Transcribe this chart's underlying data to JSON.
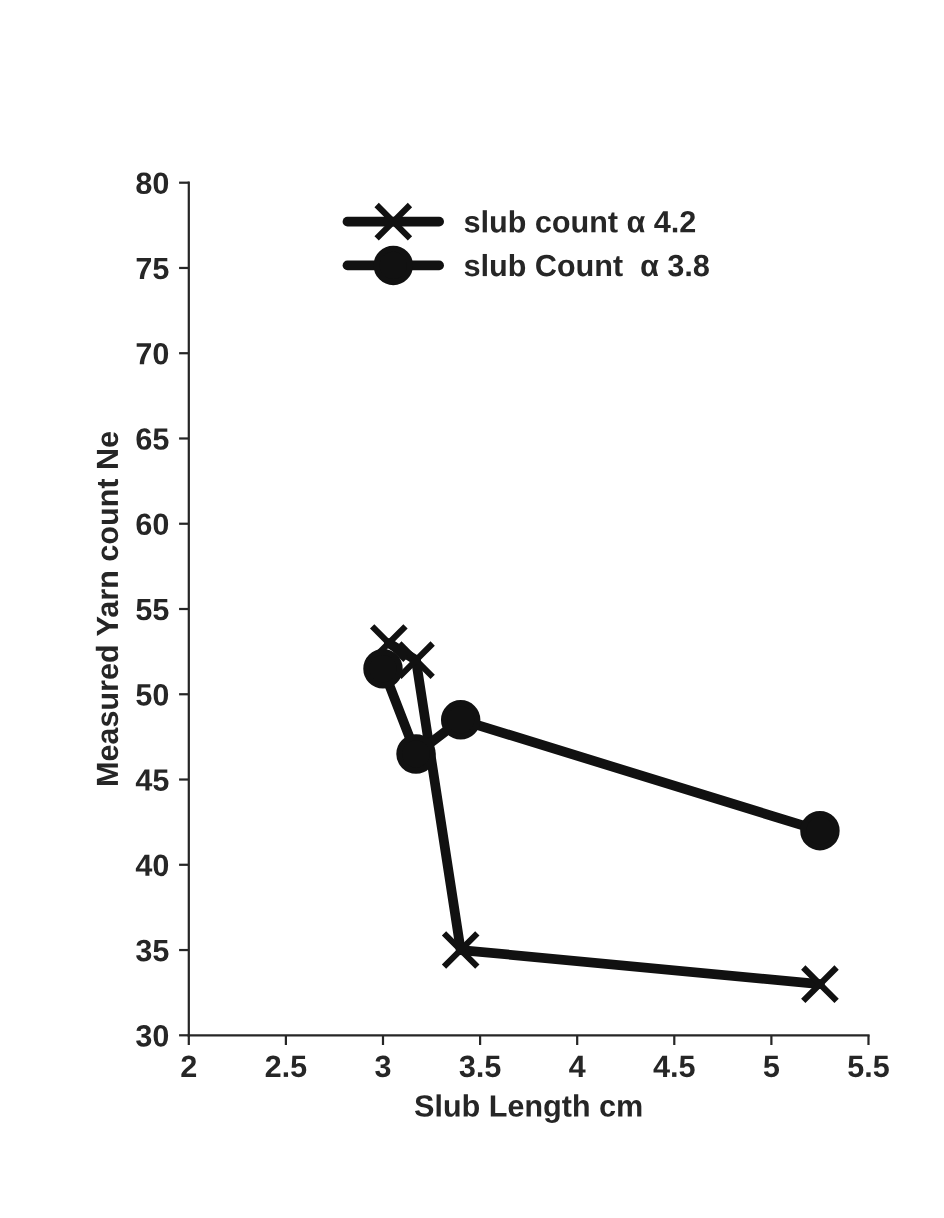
{
  "chart_data": {
    "type": "line",
    "xlabel": "Slub Length cm",
    "ylabel": "Measured Yarn count Ne",
    "series": [
      {
        "name": "slub count α 4.2",
        "color": "#111111",
        "marker": "cross",
        "x": [
          3.03,
          3.17,
          3.4,
          5.25
        ],
        "values": [
          53,
          52,
          35,
          33
        ]
      },
      {
        "name": "slub Count  α 3.8",
        "color": "#111111",
        "marker": "circle",
        "x": [
          3.0,
          3.17,
          3.4,
          5.25
        ],
        "values": [
          51.5,
          46.5,
          48.5,
          42
        ]
      }
    ],
    "xlim": [
      2,
      5.5
    ],
    "xticks": [
      2,
      2.5,
      3,
      3.5,
      4,
      4.5,
      5,
      5.5
    ],
    "ylim": [
      30,
      80
    ],
    "yticks": [
      30,
      35,
      40,
      45,
      50,
      55,
      60,
      65,
      70,
      75,
      80
    ],
    "grid": false,
    "legend": "top",
    "line_style": "solid"
  }
}
